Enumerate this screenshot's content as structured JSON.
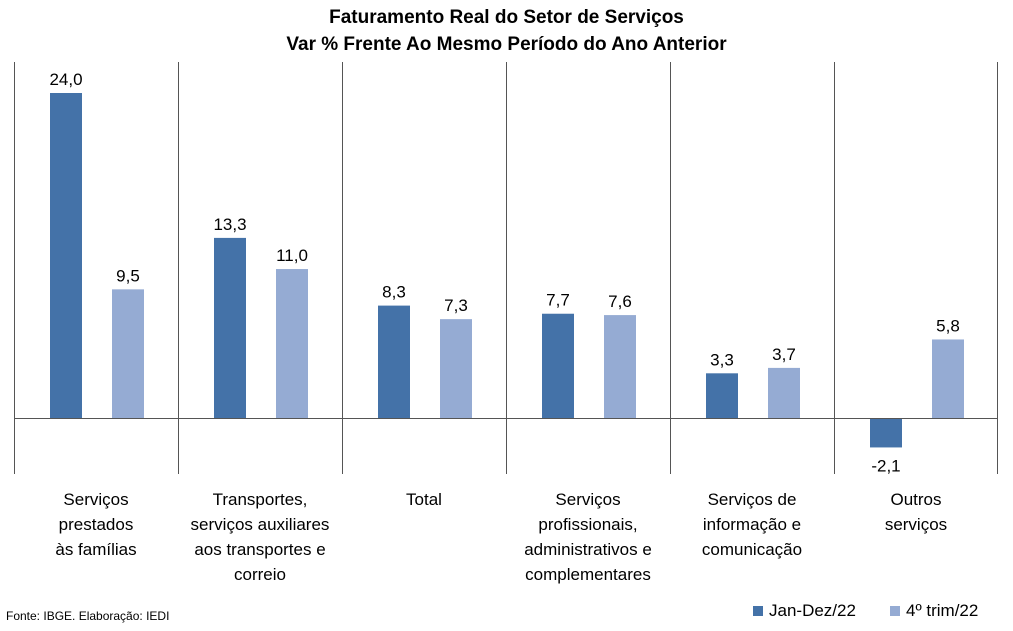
{
  "chart_data": {
    "type": "bar",
    "title": "Faturamento Real do Setor de Serviços",
    "subtitle": "Var % Frente Ao Mesmo Período do Ano Anterior",
    "categories": [
      "Serviços prestados às famílias",
      "Transportes, serviços auxiliares aos transportes e correio",
      "Total",
      "Serviços profissionais, administrativos e complementares",
      "Serviços de informação e comunicação",
      "Outros serviços"
    ],
    "series": [
      {
        "name": "Jan-Dez/22",
        "color": "#4472a8",
        "values": [
          24.0,
          13.3,
          8.3,
          7.7,
          3.3,
          -2.1
        ],
        "labels": [
          "24,0",
          "13,3",
          "8,3",
          "7,7",
          "3,3",
          "-2,1"
        ]
      },
      {
        "name": "4º trim/22",
        "color": "#95abd3",
        "values": [
          9.5,
          11.0,
          7.3,
          7.6,
          3.7,
          5.8
        ],
        "labels": [
          "9,5",
          "11,0",
          "7,3",
          "7,6",
          "3,7",
          "5,8"
        ]
      }
    ],
    "ylim": [
      -4,
      26
    ],
    "legend": "bottom-right",
    "grid": false
  },
  "source": "Fonte: IBGE. Elaboração: IEDI"
}
